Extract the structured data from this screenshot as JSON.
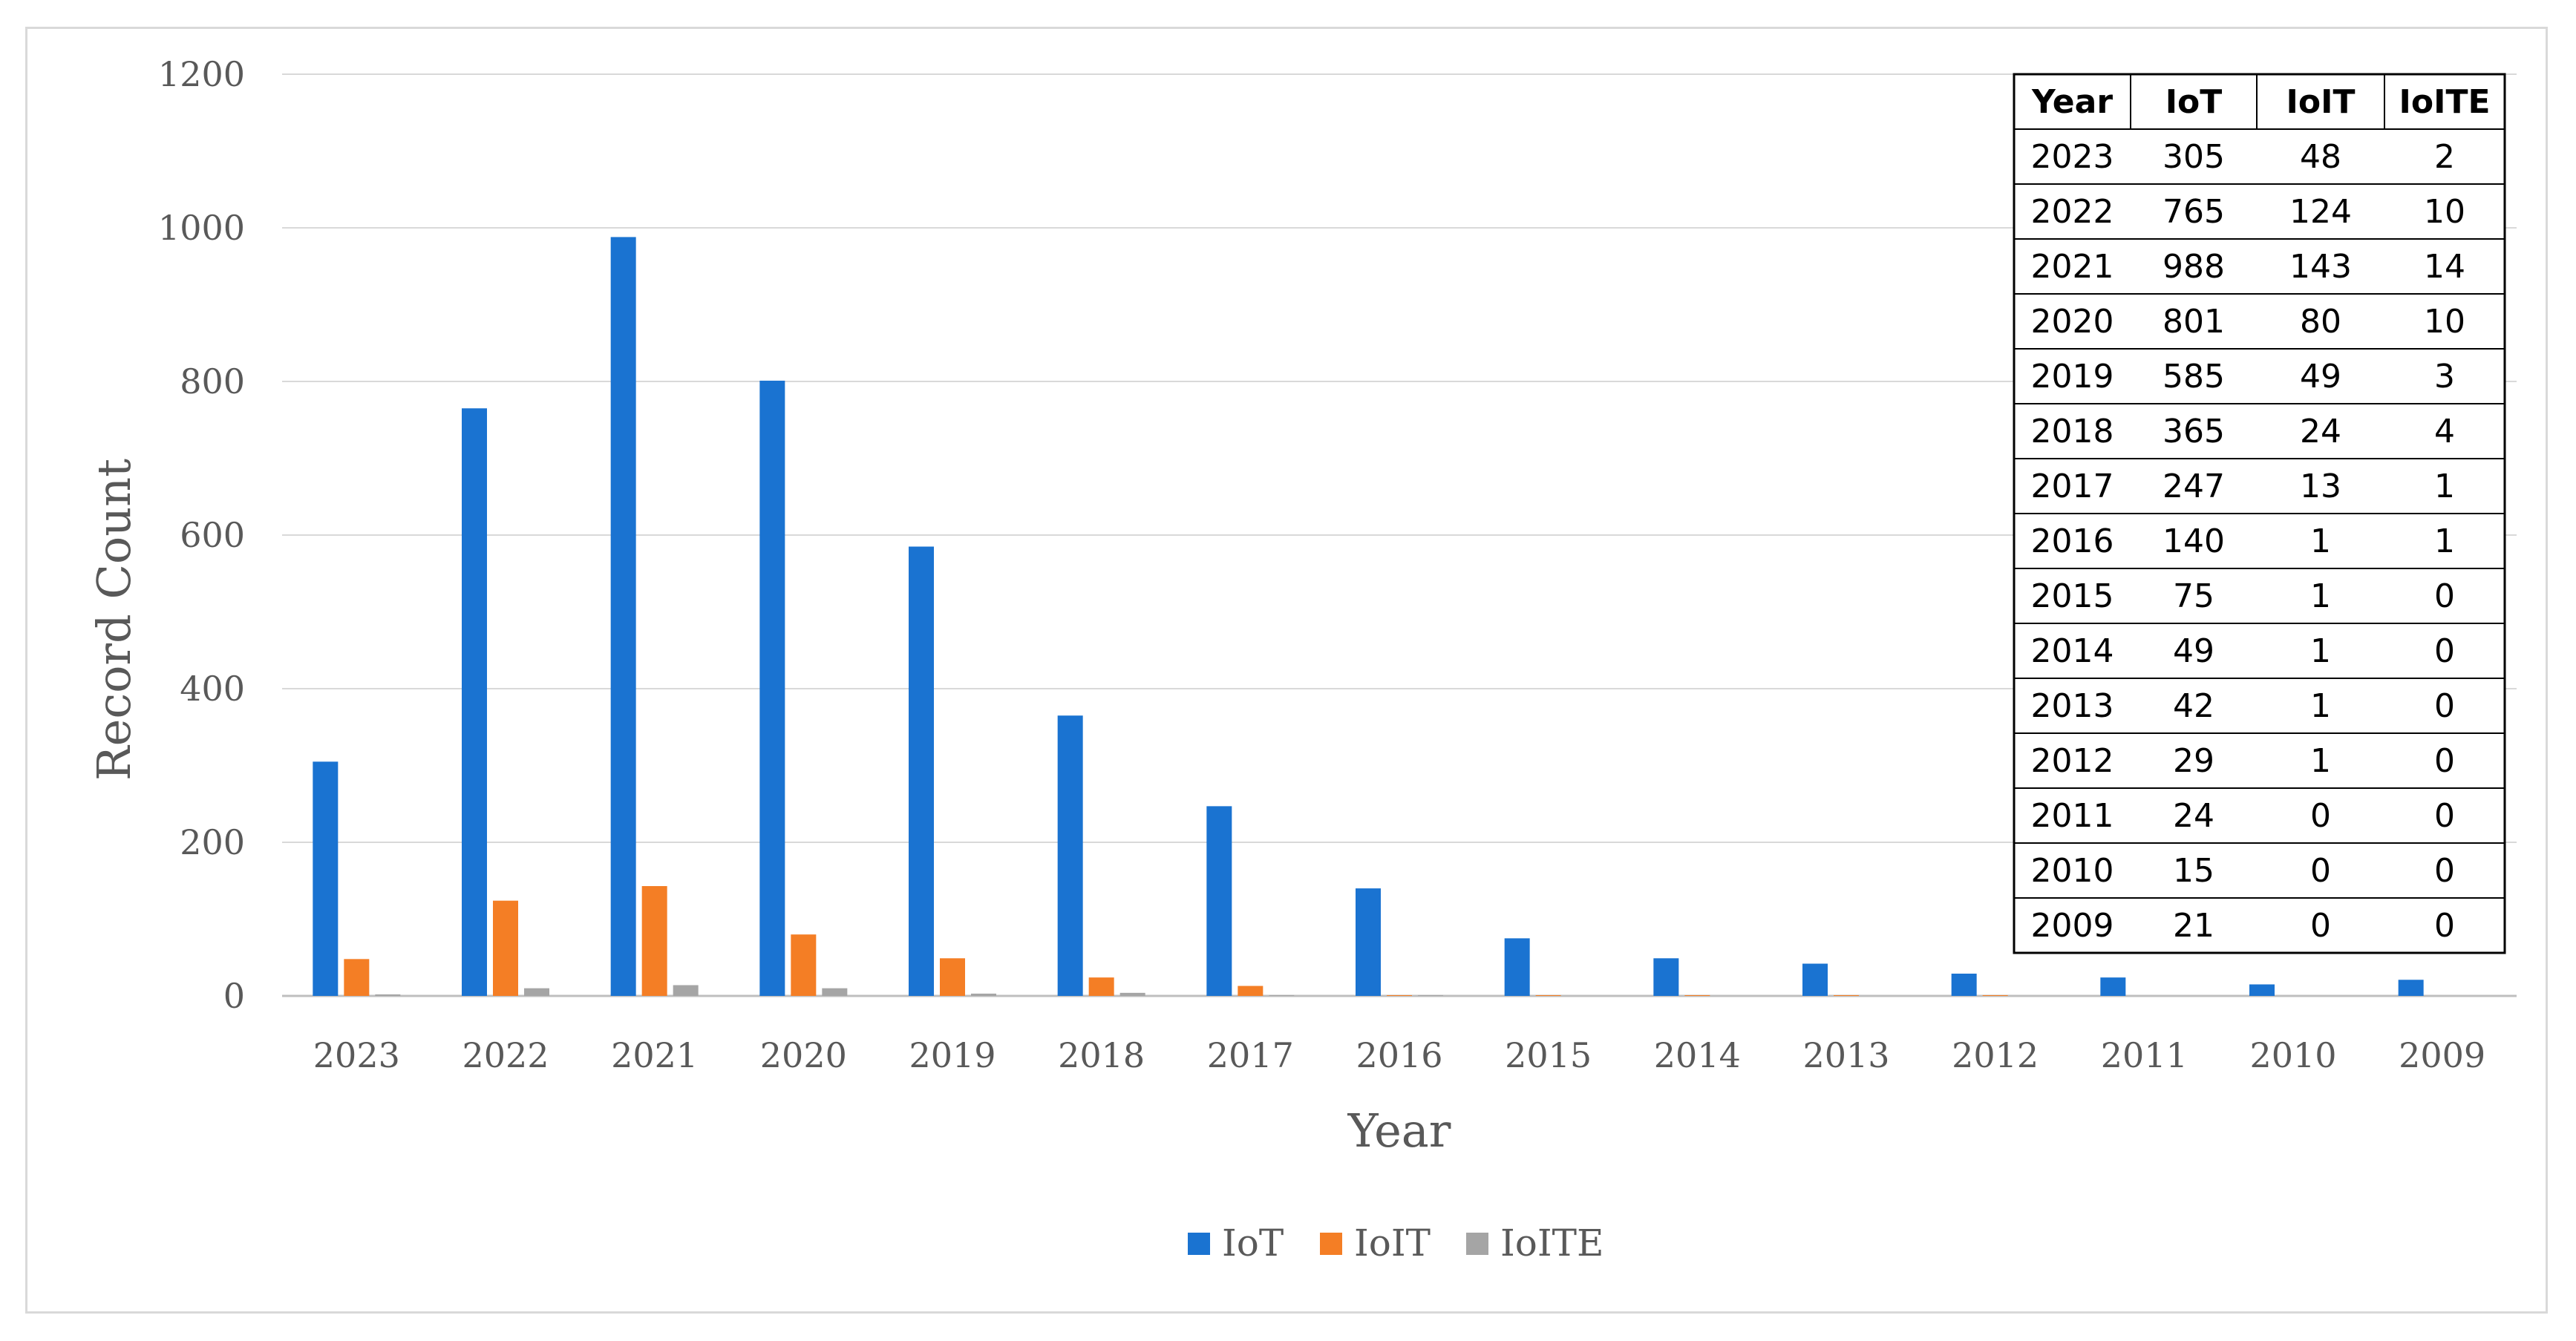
{
  "chart_data": {
    "type": "bar",
    "categories": [
      "2023",
      "2022",
      "2021",
      "2020",
      "2019",
      "2018",
      "2017",
      "2016",
      "2015",
      "2014",
      "2013",
      "2012",
      "2011",
      "2010",
      "2009"
    ],
    "series": [
      {
        "name": "IoT",
        "color": "#1a73d1",
        "values": [
          305,
          765,
          988,
          801,
          585,
          365,
          247,
          140,
          75,
          49,
          42,
          29,
          24,
          15,
          21
        ]
      },
      {
        "name": "IoIT",
        "color": "#f47e25",
        "values": [
          48,
          124,
          143,
          80,
          49,
          24,
          13,
          1,
          1,
          1,
          1,
          1,
          0,
          0,
          0
        ]
      },
      {
        "name": "IoITE",
        "color": "#a5a5a5",
        "values": [
          2,
          10,
          14,
          10,
          3,
          4,
          1,
          1,
          0,
          0,
          0,
          0,
          0,
          0,
          0
        ]
      }
    ],
    "xlabel": "Year",
    "ylabel": "Record Count",
    "ylim": [
      0,
      1200
    ],
    "yticks": [
      0,
      200,
      400,
      600,
      800,
      1000,
      1200
    ],
    "grid": true,
    "legend_position": "bottom"
  },
  "data_table": {
    "headers": [
      "Year",
      "IoT",
      "IoIT",
      "IoITE"
    ],
    "rows": [
      [
        "2023",
        "305",
        "48",
        "2"
      ],
      [
        "2022",
        "765",
        "124",
        "10"
      ],
      [
        "2021",
        "988",
        "143",
        "14"
      ],
      [
        "2020",
        "801",
        "80",
        "10"
      ],
      [
        "2019",
        "585",
        "49",
        "3"
      ],
      [
        "2018",
        "365",
        "24",
        "4"
      ],
      [
        "2017",
        "247",
        "13",
        "1"
      ],
      [
        "2016",
        "140",
        "1",
        "1"
      ],
      [
        "2015",
        "75",
        "1",
        "0"
      ],
      [
        "2014",
        "49",
        "1",
        "0"
      ],
      [
        "2013",
        "42",
        "1",
        "0"
      ],
      [
        "2012",
        "29",
        "1",
        "0"
      ],
      [
        "2011",
        "24",
        "0",
        "0"
      ],
      [
        "2010",
        "15",
        "0",
        "0"
      ],
      [
        "2009",
        "21",
        "0",
        "0"
      ]
    ]
  }
}
